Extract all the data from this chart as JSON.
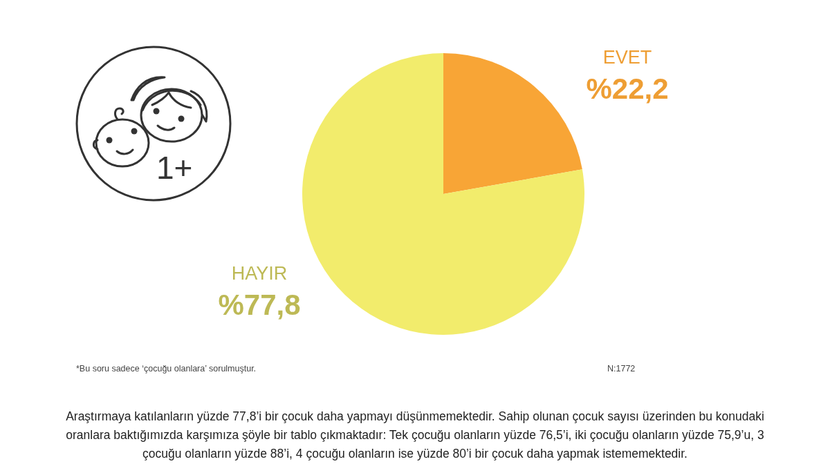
{
  "chart_data": {
    "type": "pie",
    "categories": [
      "EVET",
      "HAYIR"
    ],
    "values": [
      22.2,
      77.8
    ],
    "colors": [
      "#f8a536",
      "#f2ec6c"
    ],
    "value_labels": [
      "%22,2",
      "%77,8"
    ],
    "legend": false,
    "annotations": [
      "1+",
      "*Bu soru sadece ‘çocuğu olanlara’ sorulmuştur.",
      "N:1772",
      "Araştırmaya katılanların yüzde 77,8’i bir çocuk daha yapmayı düşünmemektedir.  Sahip olunan çocuk sayısı üzerinden bu konudaki oranlara baktığımızda karşımıza şöyle bir tablo çıkmaktadır: Tek çocuğu olanların yüzde 76,5’i, iki çocuğu olanların yüzde 75,9’u, 3 çocuğu olanların yüzde 88’i, 4 çocuğu olanların ise yüzde 80’i bir çocuk daha yapmak istememektedir."
    ]
  }
}
